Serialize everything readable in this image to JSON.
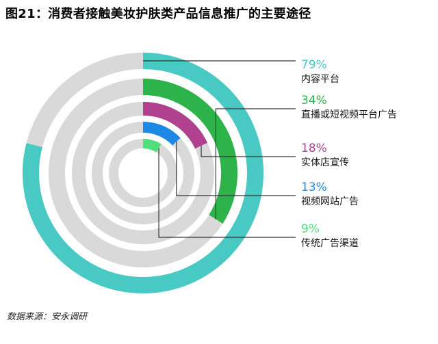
{
  "title": "图21：消费者接触美妆护肤类产品信息推广的主要途径",
  "source": "数据来源：安永调研",
  "chart_data": {
    "type": "radial-bar",
    "max": 100,
    "track_color": "#d9d9d9",
    "series": [
      {
        "name": "内容平台",
        "value": 79,
        "label": "79%",
        "color": "#48c9c3"
      },
      {
        "name": "直播或短视频平台广告",
        "value": 34,
        "label": "34%",
        "color": "#2db34a"
      },
      {
        "name": "实体店宣传",
        "value": 18,
        "label": "18%",
        "color": "#b0418f"
      },
      {
        "name": "视频网站广告",
        "value": 13,
        "label": "13%",
        "color": "#1e88e5"
      },
      {
        "name": "传统广告渠道",
        "value": 9,
        "label": "9%",
        "color": "#4ede7a"
      }
    ]
  }
}
